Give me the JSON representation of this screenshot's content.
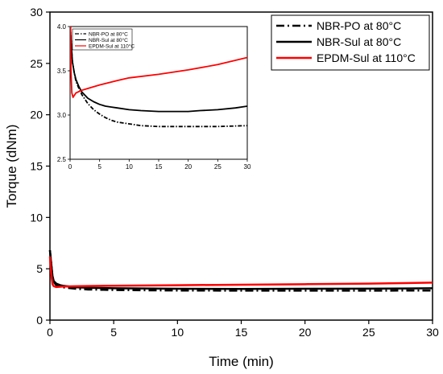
{
  "chart_data": [
    {
      "type": "line",
      "title": "",
      "xlabel": "Time (min)",
      "ylabel": "Torque (dNm)",
      "xlim": [
        0,
        30
      ],
      "ylim": [
        0,
        30
      ],
      "xticks": [
        0,
        5,
        10,
        15,
        20,
        25,
        30
      ],
      "yticks": [
        0,
        5,
        10,
        15,
        20,
        25,
        30
      ],
      "grid": false,
      "legend": "top-right",
      "series": [
        {
          "name": "NBR-PO at 80°C",
          "color": "#000000",
          "style": "dash-dot",
          "x": [
            0.0,
            0.1,
            0.2,
            0.3,
            0.5,
            0.8,
            1,
            2,
            3,
            5,
            8,
            10,
            15,
            20,
            25,
            30
          ],
          "y": [
            6.8,
            5.5,
            4.2,
            3.7,
            3.4,
            3.3,
            3.2,
            3.05,
            2.98,
            2.93,
            2.9,
            2.88,
            2.87,
            2.87,
            2.87,
            2.88
          ]
        },
        {
          "name": "NBR-Sul at 80°C",
          "color": "#000000",
          "style": "solid",
          "x": [
            0.0,
            0.1,
            0.2,
            0.3,
            0.5,
            0.8,
            1,
            2,
            3,
            5,
            8,
            10,
            15,
            20,
            25,
            30
          ],
          "y": [
            6.8,
            5.5,
            4.3,
            3.8,
            3.55,
            3.4,
            3.35,
            3.2,
            3.15,
            3.1,
            3.07,
            3.05,
            3.04,
            3.05,
            3.06,
            3.1
          ]
        },
        {
          "name": "EPDM-Sul at 110°C",
          "color": "#ff0000",
          "style": "solid",
          "x": [
            0.0,
            0.1,
            0.2,
            0.3,
            0.5,
            0.8,
            1,
            2,
            3,
            5,
            8,
            10,
            15,
            20,
            25,
            30
          ],
          "y": [
            6.2,
            4.5,
            3.5,
            3.3,
            3.22,
            3.25,
            3.27,
            3.3,
            3.32,
            3.35,
            3.38,
            3.4,
            3.45,
            3.5,
            3.55,
            3.65
          ]
        }
      ]
    },
    {
      "type": "line",
      "title": "",
      "xlabel": "",
      "ylabel": "",
      "xlim": [
        0,
        30
      ],
      "ylim": [
        2.5,
        4.0
      ],
      "xticks": [
        0,
        5,
        10,
        15,
        20,
        25,
        30
      ],
      "yticks": [
        2.5,
        3.0,
        3.5,
        4.0
      ],
      "yticklabels": [
        "2.5",
        "3.0",
        "3.5",
        "4.0"
      ],
      "grid": false,
      "legend": "top-left",
      "series": [
        {
          "name": "NBR-PO at 80°C",
          "color": "#000000",
          "style": "dash-dot",
          "x": [
            0.05,
            0.2,
            0.4,
            0.7,
            1,
            1.5,
            2,
            3,
            4,
            5,
            6,
            7,
            8,
            10,
            12,
            15,
            18,
            20,
            25,
            30
          ],
          "y": [
            4.0,
            3.8,
            3.6,
            3.48,
            3.38,
            3.3,
            3.23,
            3.13,
            3.06,
            3.01,
            2.97,
            2.94,
            2.92,
            2.9,
            2.88,
            2.87,
            2.87,
            2.87,
            2.87,
            2.88
          ]
        },
        {
          "name": "NBR-Sul at 80°C",
          "color": "#000000",
          "style": "solid",
          "x": [
            0.05,
            0.2,
            0.4,
            0.7,
            1,
            1.5,
            2,
            3,
            4,
            5,
            6,
            7,
            8,
            10,
            12,
            15,
            18,
            20,
            22,
            25,
            28,
            30
          ],
          "y": [
            4.0,
            3.8,
            3.6,
            3.48,
            3.4,
            3.32,
            3.26,
            3.19,
            3.15,
            3.12,
            3.1,
            3.09,
            3.08,
            3.06,
            3.05,
            3.04,
            3.04,
            3.04,
            3.05,
            3.06,
            3.08,
            3.1
          ]
        },
        {
          "name": "EPDM-Sul at 110°C",
          "color": "#ff0000",
          "style": "solid",
          "x": [
            0.05,
            0.15,
            0.3,
            0.5,
            0.7,
            1,
            2,
            3,
            5,
            8,
            10,
            15,
            20,
            25,
            30
          ],
          "y": [
            4.0,
            3.5,
            3.25,
            3.2,
            3.22,
            3.25,
            3.28,
            3.3,
            3.34,
            3.39,
            3.42,
            3.46,
            3.51,
            3.57,
            3.65
          ]
        }
      ]
    }
  ]
}
